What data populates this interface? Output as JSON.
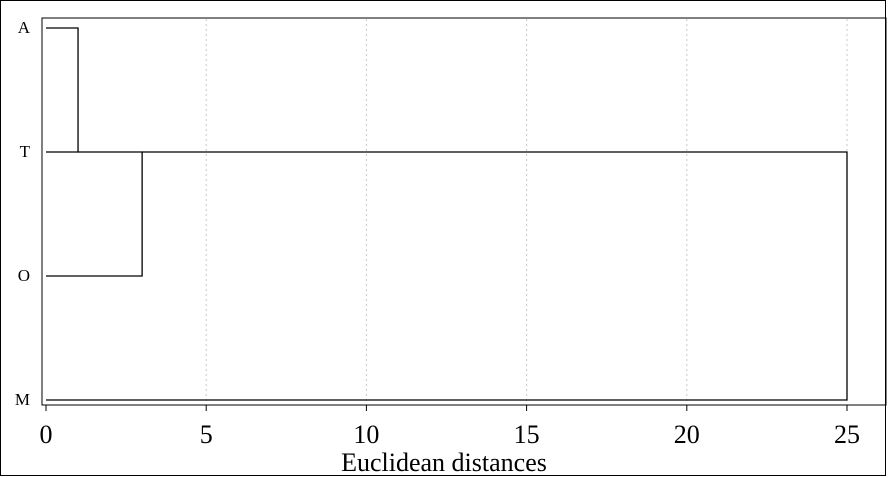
{
  "chart_data": {
    "type": "dendrogram",
    "orientation": "horizontal",
    "title": "",
    "xlabel": "Euclidean distances",
    "ylabel": "",
    "xlim": [
      0,
      26.2
    ],
    "x_ticks": [
      0,
      5,
      10,
      15,
      20,
      25
    ],
    "x_tick_labels": [
      "0",
      "5",
      "10",
      "15",
      "20",
      "25"
    ],
    "grid": "vertical dotted at x ticks",
    "leaves": [
      "A",
      "T",
      "O",
      "M"
    ],
    "merges": [
      {
        "members": [
          "A",
          "T"
        ],
        "distance": 1
      },
      {
        "members": [
          "A",
          "T",
          "O"
        ],
        "distance": 3
      },
      {
        "members": [
          "A",
          "T",
          "O",
          "M"
        ],
        "distance": 25
      }
    ],
    "colors": {
      "line": "#000000",
      "grid": "#c8c8c8",
      "background": "#ffffff"
    }
  }
}
